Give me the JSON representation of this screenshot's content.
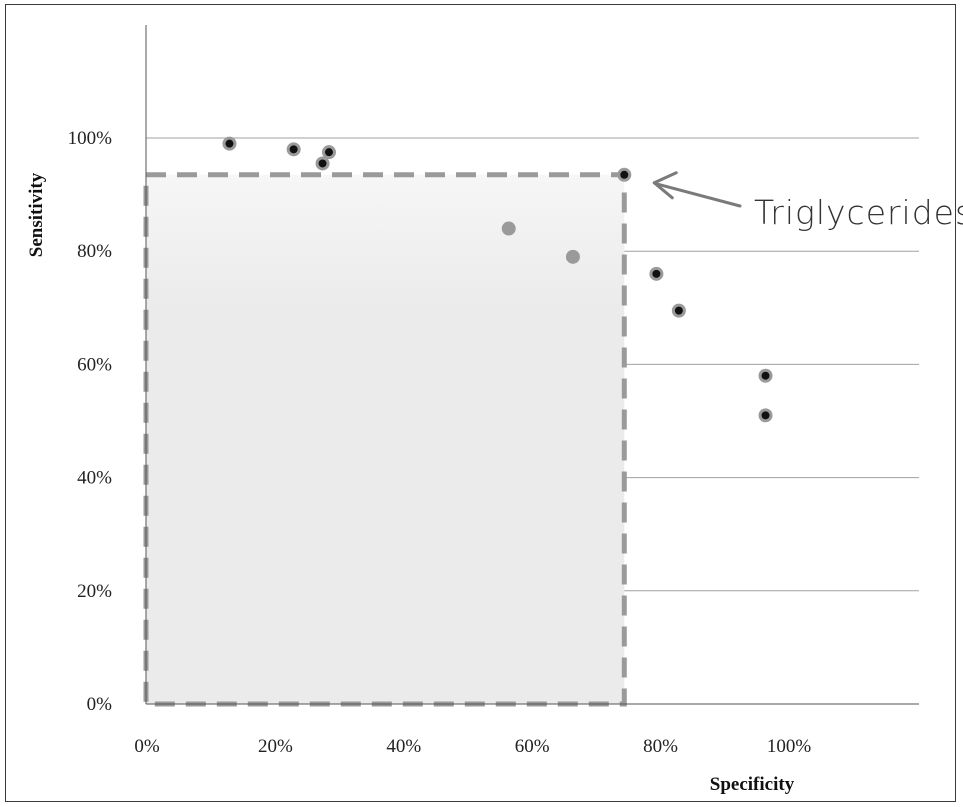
{
  "chart_data": {
    "type": "scatter",
    "xlabel": "Specificity",
    "ylabel": "Sensitivity",
    "xlim": [
      0,
      1.2
    ],
    "ylim": [
      0,
      1.2
    ],
    "x_ticks": [
      0,
      0.2,
      0.4,
      0.6,
      0.8,
      1.0
    ],
    "x_tick_labels": [
      "0%",
      "20%",
      "40%",
      "60%",
      "80%",
      "100%"
    ],
    "y_ticks": [
      0,
      0.2,
      0.4,
      0.6,
      0.8,
      1.0
    ],
    "y_tick_labels": [
      "0%",
      "20%",
      "40%",
      "60%",
      "80%",
      "100%"
    ],
    "grid": "horizontal",
    "series": [
      {
        "color": "#111111",
        "points": [
          {
            "x": 0.13,
            "y": 0.99
          },
          {
            "x": 0.23,
            "y": 0.98
          },
          {
            "x": 0.275,
            "y": 0.955
          },
          {
            "x": 0.285,
            "y": 0.975
          },
          {
            "x": 0.745,
            "y": 0.935
          },
          {
            "x": 0.795,
            "y": 0.76
          },
          {
            "x": 0.83,
            "y": 0.695
          },
          {
            "x": 0.965,
            "y": 0.58
          },
          {
            "x": 0.965,
            "y": 0.51
          }
        ]
      },
      {
        "color": "#9a9a9a",
        "points": [
          {
            "x": 0.565,
            "y": 0.84
          },
          {
            "x": 0.665,
            "y": 0.79
          }
        ]
      }
    ],
    "highlight_box": {
      "x": [
        0,
        0.745
      ],
      "y": [
        0,
        0.935
      ],
      "style": "dashed",
      "fill": "#ececec"
    },
    "annotations": [
      {
        "text": "Triglycerides",
        "points_to": {
          "x": 0.745,
          "y": 0.935
        }
      }
    ],
    "colors": {
      "grid": "#a0a0a0",
      "axis": "#555555",
      "box_border": "#9a9a9a",
      "box_fill_top": "#f6f6f6",
      "box_fill": "#ebebeb",
      "arrow": "#7a7a7a"
    }
  }
}
